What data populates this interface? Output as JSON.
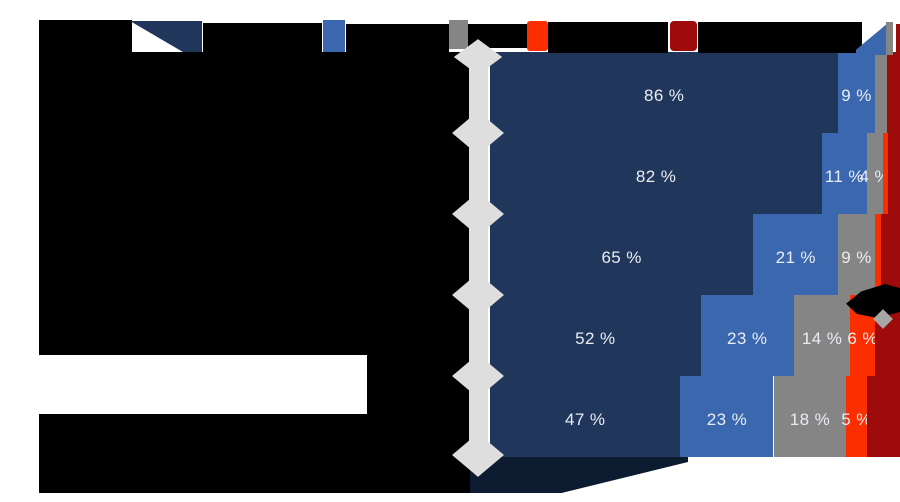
{
  "chart_data": {
    "type": "bar",
    "orientation": "horizontal-stacked",
    "title": "",
    "title_redacted": true,
    "categories": [
      "",
      "",
      "",
      "",
      ""
    ],
    "category_labels_redacted": true,
    "axis_labels_redacted": true,
    "right_edge_cut_off": true,
    "xlim_percent": [
      0,
      100
    ],
    "series_colors": {
      "navy": "#20365A",
      "blue": "#3A67AE",
      "gray": "#858585",
      "red": "#FB2E00",
      "darkred": "#9E0B0B"
    },
    "rows": [
      {
        "segments": [
          {
            "color": "navy",
            "pct": 86,
            "label": "86 %"
          },
          {
            "color": "blue",
            "pct": 9,
            "label": "9 %"
          },
          {
            "color": "gray",
            "pct": 3,
            "label": ""
          },
          {
            "color": "darkred",
            "pct": 2,
            "label": ""
          }
        ]
      },
      {
        "segments": [
          {
            "color": "navy",
            "pct": 82,
            "label": "82 %"
          },
          {
            "color": "blue",
            "pct": 11,
            "label": "11 %"
          },
          {
            "color": "gray",
            "pct": 4,
            "label": "4 %"
          },
          {
            "color": "red",
            "pct": 1.2,
            "label": ""
          },
          {
            "color": "darkred",
            "pct": 1.8,
            "label": ""
          }
        ]
      },
      {
        "segments": [
          {
            "color": "navy",
            "pct": 65,
            "label": "65 %"
          },
          {
            "color": "blue",
            "pct": 21,
            "label": "21 %"
          },
          {
            "color": "gray",
            "pct": 9,
            "label": "9 %"
          },
          {
            "color": "red",
            "pct": 1.5,
            "label": ""
          },
          {
            "color": "darkred",
            "pct": 3.5,
            "label": ""
          }
        ]
      },
      {
        "segments": [
          {
            "color": "navy",
            "pct": 52,
            "label": "52 %"
          },
          {
            "color": "blue",
            "pct": 23,
            "label": "23 %"
          },
          {
            "color": "gray",
            "pct": 14,
            "label": "14 %"
          },
          {
            "color": "red",
            "pct": 6,
            "label": "6 %"
          },
          {
            "color": "darkred",
            "pct": 5,
            "label": ""
          }
        ]
      },
      {
        "segments": [
          {
            "color": "navy",
            "pct": 47,
            "label": "47 %"
          },
          {
            "color": "blue",
            "pct": 23,
            "label": "23 %"
          },
          {
            "color": "gray",
            "pct": 18,
            "label": "18 %"
          },
          {
            "color": "red",
            "pct": 5,
            "label": "5 %"
          },
          {
            "color": "darkred",
            "pct": 7,
            "label": ""
          }
        ]
      }
    ],
    "legend": {
      "position": "top",
      "labels_redacted": true,
      "entries": [
        {
          "color": "navy",
          "label": ""
        },
        {
          "color": "blue",
          "label": ""
        },
        {
          "color": "gray",
          "label": ""
        },
        {
          "color": "red",
          "label": ""
        },
        {
          "color": "darkred",
          "label": ""
        }
      ]
    },
    "decorations": {
      "diamond_chain_color": "#DEDEDE",
      "annotation_arrow_color": "#000000",
      "annotation_diamond_color": "#A6A6A6",
      "redaction_color": "#000000",
      "label_text_color": "#E9EDF3"
    }
  }
}
